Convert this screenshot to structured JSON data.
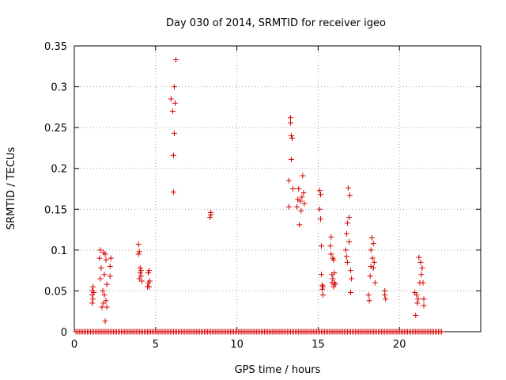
{
  "chart_data": {
    "type": "scatter",
    "title": "Day 030 of 2014, SRMTID for receiver igeo",
    "xlabel": "GPS time / hours",
    "ylabel": "SRMTID / TECUs",
    "xlim": [
      0,
      25
    ],
    "ylim": [
      0,
      0.35
    ],
    "xticks": [
      0,
      5,
      10,
      15,
      20
    ],
    "xtick_labels": [
      "0",
      "5",
      "10",
      "15",
      "20"
    ],
    "yticks": [
      0,
      0.05,
      0.1,
      0.15,
      0.2,
      0.25,
      0.3,
      0.35
    ],
    "ytick_labels": [
      "0",
      "0.05",
      "0.1",
      "0.15",
      "0.2",
      "0.25",
      "0.3",
      "0.35"
    ],
    "grid": true,
    "marker": "plus",
    "color": "#d40000",
    "series": [
      {
        "name": "SRMTID",
        "x": [
          1.1,
          1.1,
          1.1,
          1.15,
          1.15,
          1.2,
          1.55,
          1.6,
          1.6,
          1.65,
          1.7,
          1.75,
          1.8,
          1.8,
          1.85,
          1.85,
          1.9,
          1.9,
          1.95,
          1.95,
          2.0,
          2.0,
          2.2,
          2.2,
          2.25,
          3.95,
          3.95,
          4.0,
          4.0,
          4.05,
          4.05,
          4.1,
          4.1,
          4.15,
          4.5,
          4.55,
          4.55,
          4.6,
          4.6,
          4.65,
          5.95,
          6.05,
          6.1,
          6.1,
          6.15,
          6.15,
          6.2,
          6.25,
          8.35,
          8.4,
          8.4,
          13.2,
          13.2,
          13.3,
          13.3,
          13.35,
          13.35,
          13.4,
          13.45,
          13.7,
          13.75,
          13.8,
          13.85,
          13.9,
          13.95,
          14.0,
          14.05,
          14.1,
          14.15,
          15.1,
          15.1,
          15.15,
          15.15,
          15.2,
          15.2,
          15.25,
          15.25,
          15.3,
          15.3,
          15.75,
          15.8,
          15.8,
          15.85,
          15.85,
          15.9,
          15.9,
          15.95,
          15.95,
          16.0,
          16.0,
          16.05,
          16.7,
          16.75,
          16.75,
          16.8,
          16.8,
          16.85,
          16.9,
          16.9,
          16.95,
          17.0,
          17.0,
          17.05,
          18.1,
          18.15,
          18.2,
          18.25,
          18.25,
          18.3,
          18.35,
          18.4,
          18.4,
          18.45,
          18.5,
          19.1,
          19.1,
          19.15,
          20.95,
          21.0,
          21.05,
          21.1,
          21.15,
          21.2,
          21.25,
          21.3,
          21.35,
          21.4,
          21.45,
          21.5,
          21.5
        ],
        "y": [
          0.035,
          0.045,
          0.05,
          0.04,
          0.055,
          0.048,
          0.09,
          0.065,
          0.1,
          0.078,
          0.03,
          0.05,
          0.035,
          0.097,
          0.07,
          0.045,
          0.013,
          0.095,
          0.088,
          0.038,
          0.058,
          0.03,
          0.068,
          0.08,
          0.09,
          0.095,
          0.107,
          0.098,
          0.065,
          0.072,
          0.078,
          0.068,
          0.075,
          0.062,
          0.055,
          0.072,
          0.06,
          0.075,
          0.055,
          0.062,
          0.285,
          0.27,
          0.216,
          0.171,
          0.243,
          0.3,
          0.28,
          0.333,
          0.14,
          0.146,
          0.143,
          0.153,
          0.185,
          0.262,
          0.256,
          0.24,
          0.211,
          0.237,
          0.175,
          0.153,
          0.162,
          0.175,
          0.131,
          0.16,
          0.148,
          0.165,
          0.191,
          0.17,
          0.157,
          0.173,
          0.15,
          0.168,
          0.138,
          0.105,
          0.07,
          0.052,
          0.057,
          0.045,
          0.055,
          0.105,
          0.095,
          0.116,
          0.07,
          0.06,
          0.09,
          0.065,
          0.055,
          0.088,
          0.06,
          0.072,
          0.058,
          0.1,
          0.12,
          0.092,
          0.133,
          0.085,
          0.176,
          0.14,
          0.11,
          0.167,
          0.075,
          0.048,
          0.065,
          0.045,
          0.038,
          0.068,
          0.08,
          0.1,
          0.115,
          0.09,
          0.078,
          0.108,
          0.085,
          0.06,
          0.05,
          0.045,
          0.04,
          0.048,
          0.02,
          0.045,
          0.035,
          0.04,
          0.091,
          0.06,
          0.085,
          0.07,
          0.078,
          0.06,
          0.04,
          0.032
        ],
        "baseline_x_start": 0.1,
        "baseline_x_end": 22.6,
        "baseline_step": 0.1,
        "baseline_value": 0
      }
    ]
  }
}
